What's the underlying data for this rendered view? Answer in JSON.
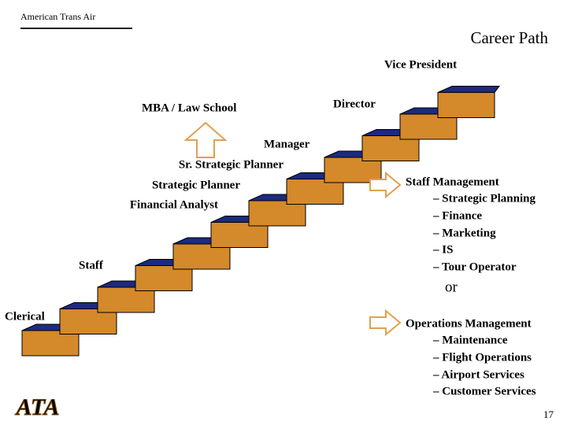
{
  "header": {
    "company": "American Trans Air",
    "title": "Career Path"
  },
  "levels": [
    "Vice President",
    "Director",
    "MBA / Law School",
    "Manager",
    "Sr. Strategic Planner",
    "Strategic Planner",
    "Financial Analyst",
    "Staff",
    "Clerical"
  ],
  "staff_track": {
    "title": "Staff Management",
    "items": [
      "– Strategic Planning",
      "– Finance",
      "– Marketing",
      "– IS",
      "– Tour Operator"
    ]
  },
  "separator": "or",
  "operations_track": {
    "title": "Operations Management",
    "items": [
      "– Maintenance",
      "– Flight Operations",
      "– Airport Services",
      "– Customer Services"
    ]
  },
  "footer": {
    "logo": "ATA",
    "page": "17"
  }
}
